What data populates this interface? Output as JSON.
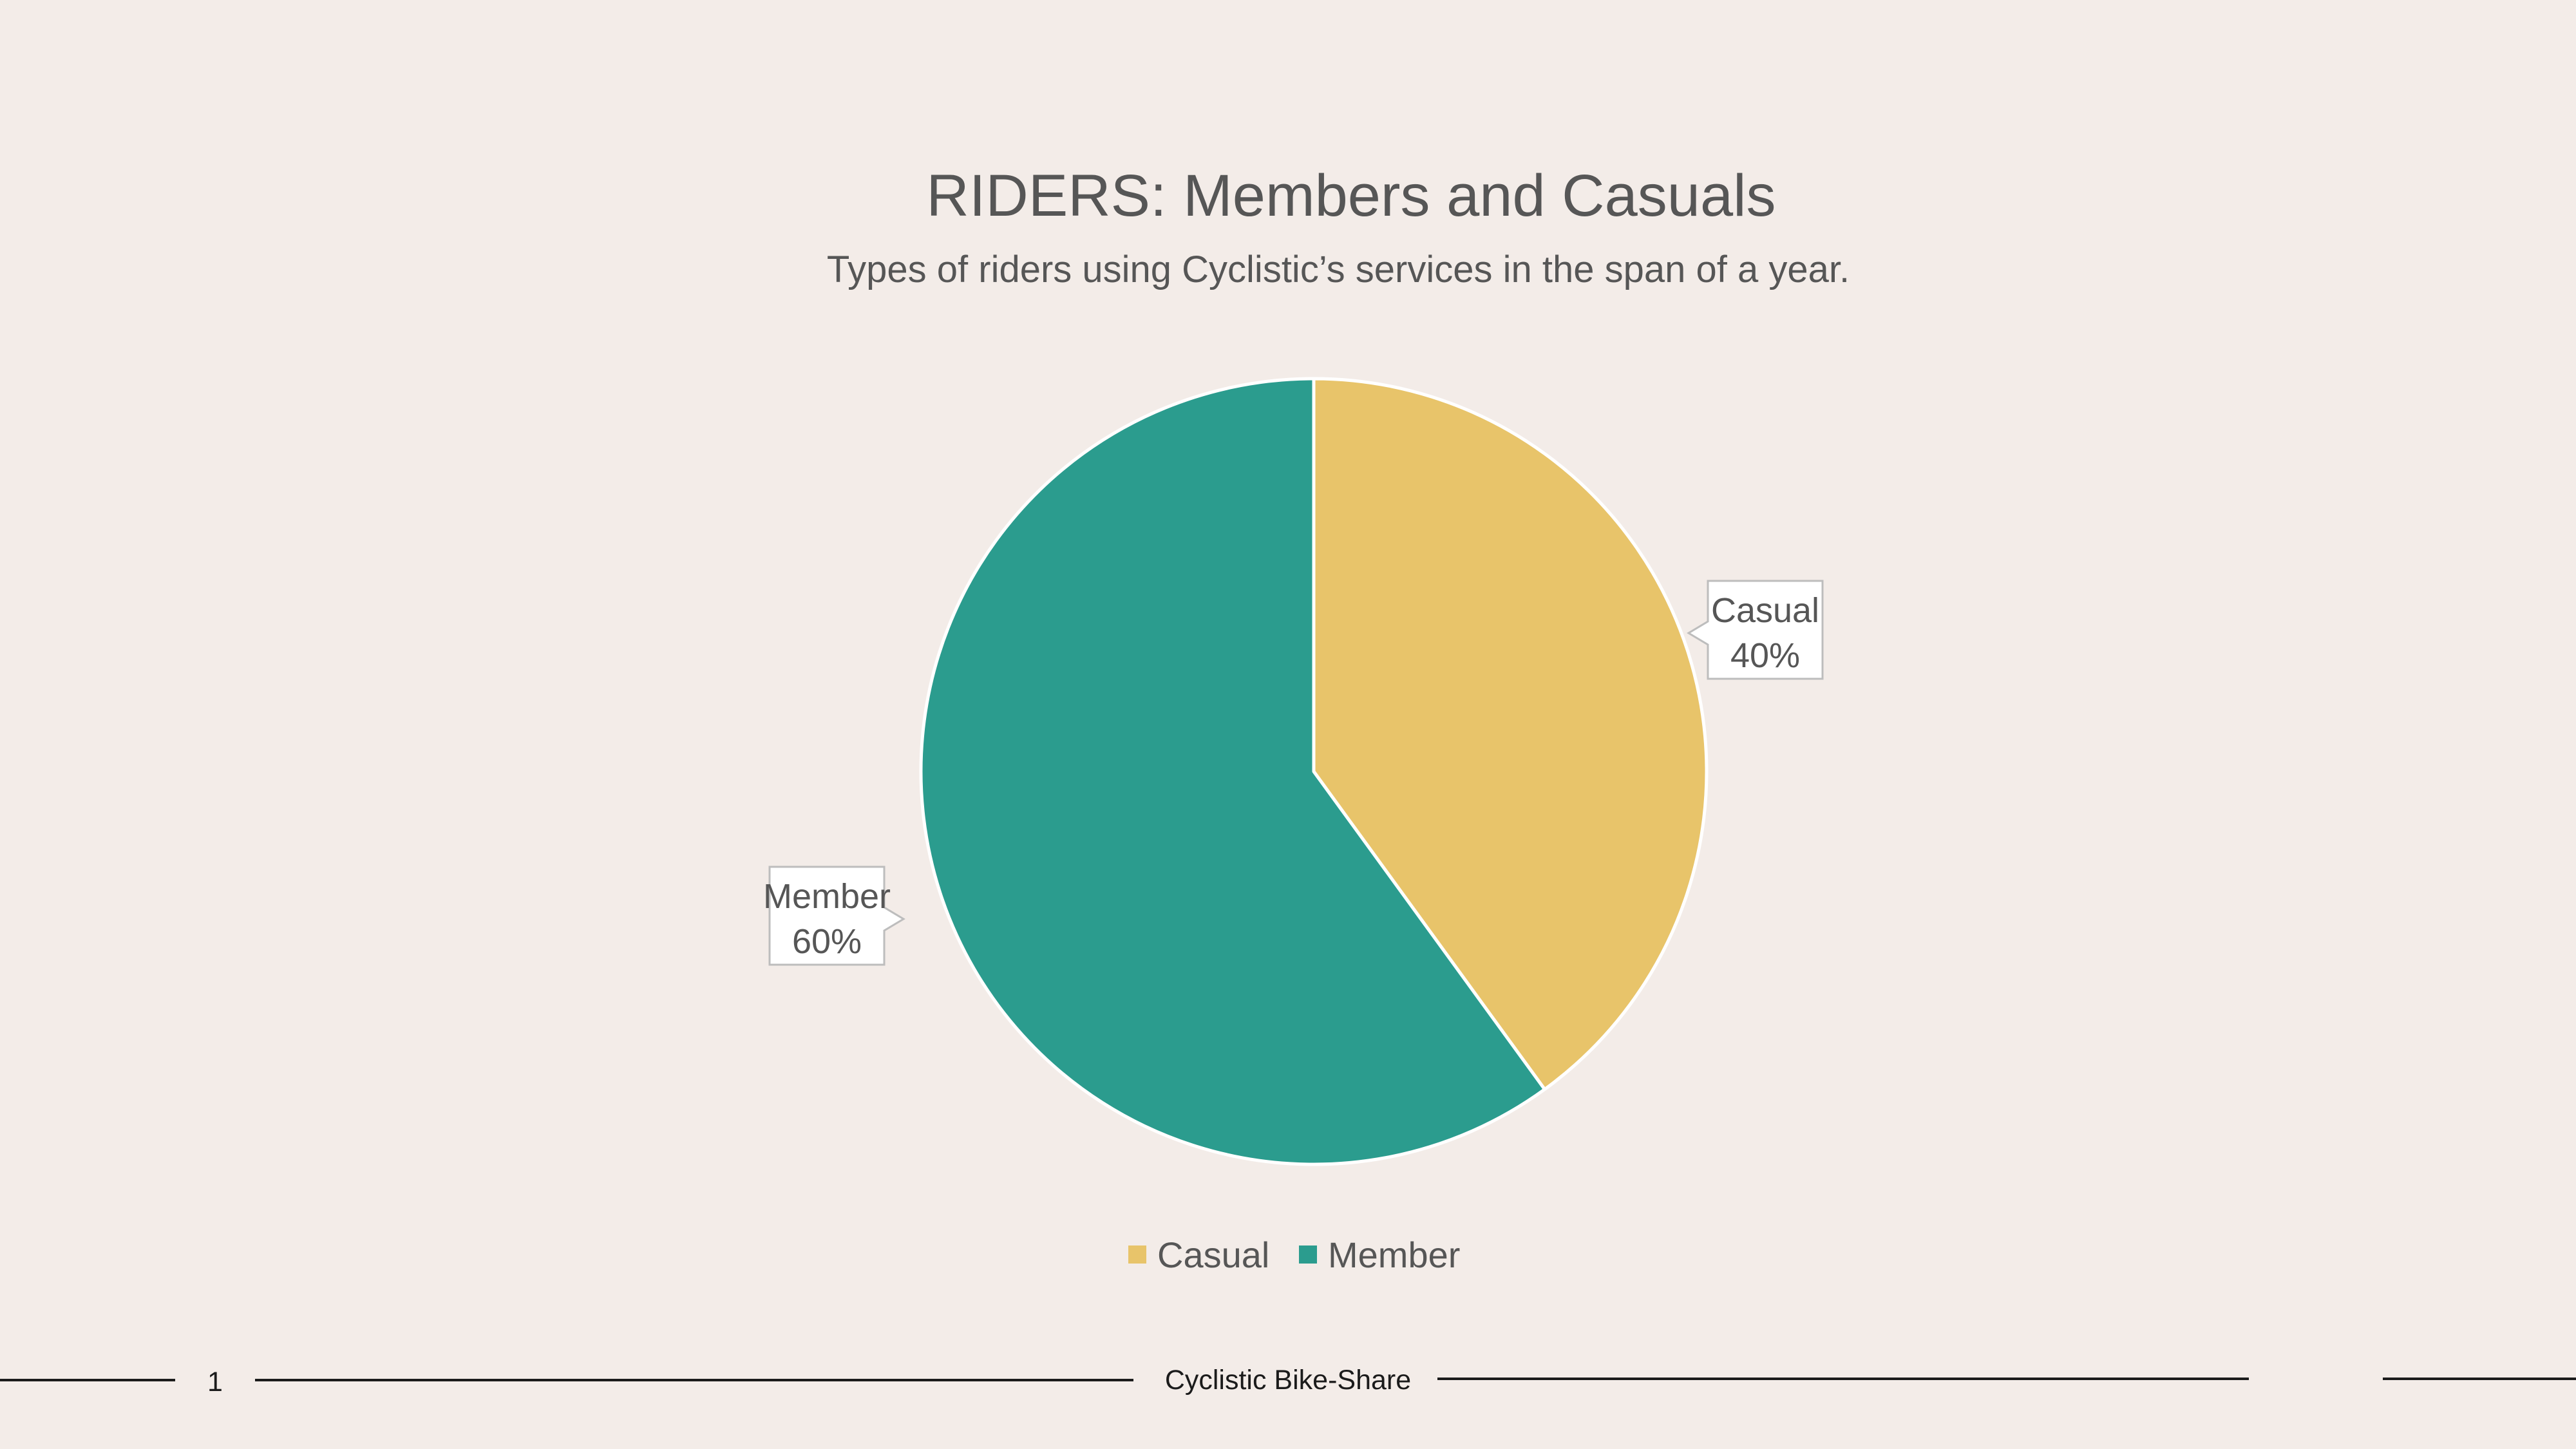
{
  "footer": {
    "page_number": "1",
    "presentation_title": "Cyclistic Bike-Share"
  },
  "colors": {
    "background": "#F3ECE8",
    "casual": "#E8C46A",
    "member": "#2B9C8E",
    "text": "#565656"
  },
  "chart_data": {
    "type": "pie",
    "title": "RIDERS: Members and Casuals",
    "subtitle": "Types of riders using Cyclistic’s services in the span of a year.",
    "categories": [
      "Casual",
      "Member"
    ],
    "values": [
      40,
      60
    ],
    "unit": "%",
    "colors": [
      "#E8C46A",
      "#2B9C8E"
    ],
    "data_labels": [
      {
        "category": "Casual",
        "value_text": "40%"
      },
      {
        "category": "Member",
        "value_text": "60%"
      }
    ],
    "legend": {
      "position": "bottom",
      "entries": [
        "Casual",
        "Member"
      ]
    }
  }
}
